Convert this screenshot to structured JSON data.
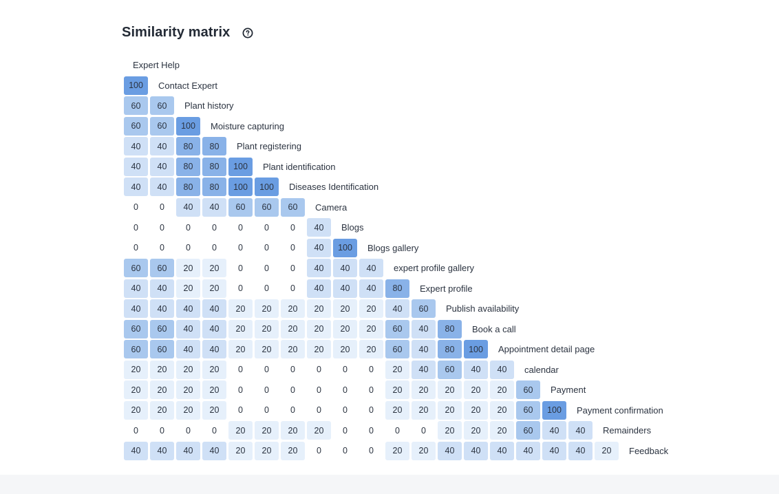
{
  "page": {
    "title": "Similarity matrix",
    "help_icon": "help-circle-icon"
  },
  "chart_data": {
    "type": "heatmap",
    "title": "Similarity matrix",
    "labels": [
      "Expert Help",
      "Contact Expert",
      "Plant history",
      "Moisture capturing",
      "Plant registering",
      "Plant identification",
      "Diseases Identification",
      "Camera",
      "Blogs",
      "Blogs gallery",
      "expert profile gallery",
      "Expert profile",
      "Publish availability",
      "Book a call",
      "Appointment detail page",
      "calendar",
      "Payment",
      "Payment confirmation",
      "Remainders",
      "Feedback"
    ],
    "rows": [
      [],
      [
        100
      ],
      [
        60,
        60
      ],
      [
        60,
        60,
        100
      ],
      [
        40,
        40,
        80,
        80
      ],
      [
        40,
        40,
        80,
        80,
        100
      ],
      [
        40,
        40,
        80,
        80,
        100,
        100
      ],
      [
        0,
        0,
        40,
        40,
        60,
        60,
        60
      ],
      [
        0,
        0,
        0,
        0,
        0,
        0,
        0,
        40
      ],
      [
        0,
        0,
        0,
        0,
        0,
        0,
        0,
        40,
        100
      ],
      [
        60,
        60,
        20,
        20,
        0,
        0,
        0,
        40,
        40,
        40
      ],
      [
        40,
        40,
        20,
        20,
        0,
        0,
        0,
        40,
        40,
        40,
        80
      ],
      [
        40,
        40,
        40,
        40,
        20,
        20,
        20,
        20,
        20,
        20,
        40,
        60
      ],
      [
        60,
        60,
        40,
        40,
        20,
        20,
        20,
        20,
        20,
        20,
        60,
        40,
        80
      ],
      [
        60,
        60,
        40,
        40,
        20,
        20,
        20,
        20,
        20,
        20,
        60,
        40,
        80,
        100
      ],
      [
        20,
        20,
        20,
        20,
        0,
        0,
        0,
        0,
        0,
        0,
        20,
        40,
        60,
        40,
        40
      ],
      [
        20,
        20,
        20,
        20,
        0,
        0,
        0,
        0,
        0,
        0,
        20,
        20,
        20,
        20,
        20,
        60
      ],
      [
        20,
        20,
        20,
        20,
        0,
        0,
        0,
        0,
        0,
        0,
        20,
        20,
        20,
        20,
        20,
        60,
        100
      ],
      [
        0,
        0,
        0,
        0,
        20,
        20,
        20,
        20,
        0,
        0,
        0,
        0,
        20,
        20,
        20,
        60,
        40,
        40
      ],
      [
        40,
        40,
        40,
        40,
        20,
        20,
        20,
        0,
        0,
        0,
        20,
        20,
        40,
        40,
        40,
        40,
        40,
        40,
        20
      ]
    ],
    "value_range": [
      0,
      100
    ],
    "colors": {
      "0": "#ffffff",
      "20": "#e6f0fb",
      "40": "#cfe0f6",
      "60": "#a9c8ee",
      "80": "#89b2e8",
      "100": "#6a9de2"
    }
  }
}
